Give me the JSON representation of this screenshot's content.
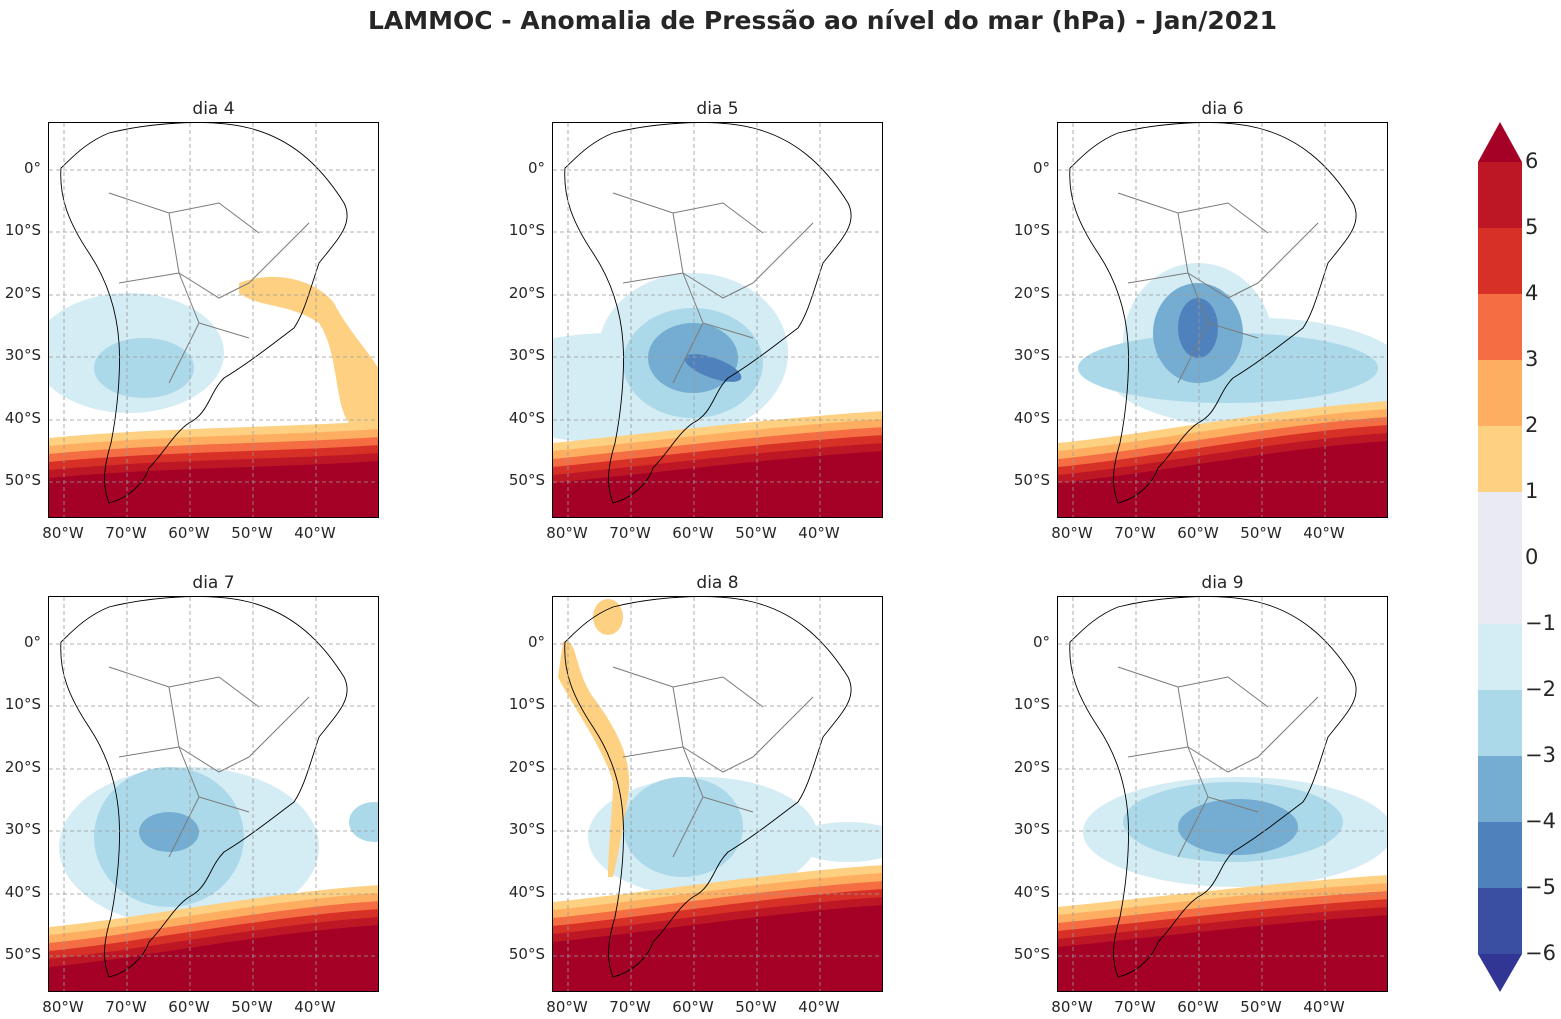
{
  "title": "LAMMOC - Anomalia de Pressão ao nível do mar (hPa) - Jan/2021",
  "panels": [
    {
      "label": "dia 4"
    },
    {
      "label": "dia 5"
    },
    {
      "label": "dia 6"
    },
    {
      "label": "dia 7"
    },
    {
      "label": "dia 8"
    },
    {
      "label": "dia 9"
    }
  ],
  "lat_ticks": [
    "0°",
    "10°S",
    "20°S",
    "30°S",
    "40°S",
    "50°S"
  ],
  "lon_ticks": [
    "80°W",
    "70°W",
    "60°W",
    "50°W",
    "40°W"
  ],
  "colorbar": {
    "ticks": [
      "6",
      "5",
      "4",
      "3",
      "2",
      "1",
      "0",
      "−1",
      "−2",
      "−3",
      "−4",
      "−5",
      "−6"
    ],
    "colors": [
      "#a50026",
      "#bd1726",
      "#d73027",
      "#f46d43",
      "#fdae61",
      "#fed082",
      "#eaeaf2",
      "#eaeaf2",
      "#d4ecf4",
      "#abd9e9",
      "#74add1",
      "#4f82bd",
      "#3a4ea2",
      "#313695"
    ]
  }
}
